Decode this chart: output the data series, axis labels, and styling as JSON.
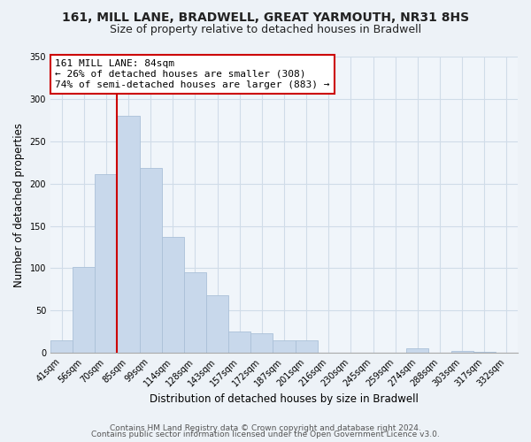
{
  "title1": "161, MILL LANE, BRADWELL, GREAT YARMOUTH, NR31 8HS",
  "title2": "Size of property relative to detached houses in Bradwell",
  "xlabel": "Distribution of detached houses by size in Bradwell",
  "ylabel": "Number of detached properties",
  "categories": [
    "41sqm",
    "56sqm",
    "70sqm",
    "85sqm",
    "99sqm",
    "114sqm",
    "128sqm",
    "143sqm",
    "157sqm",
    "172sqm",
    "187sqm",
    "201sqm",
    "216sqm",
    "230sqm",
    "245sqm",
    "259sqm",
    "274sqm",
    "288sqm",
    "303sqm",
    "317sqm",
    "332sqm"
  ],
  "values": [
    15,
    101,
    211,
    280,
    218,
    137,
    95,
    68,
    25,
    23,
    15,
    15,
    0,
    0,
    0,
    0,
    5,
    0,
    2,
    1,
    0
  ],
  "bar_color": "#c8d8eb",
  "bar_edge_color": "#aac0d8",
  "annotation_box_text": "161 MILL LANE: 84sqm\n← 26% of detached houses are smaller (308)\n74% of semi-detached houses are larger (883) →",
  "annotation_box_facecolor": "white",
  "annotation_box_edgecolor": "#cc0000",
  "vline_color": "#cc0000",
  "vline_x": 3,
  "ylim": [
    0,
    350
  ],
  "yticks": [
    0,
    50,
    100,
    150,
    200,
    250,
    300,
    350
  ],
  "footer1": "Contains HM Land Registry data © Crown copyright and database right 2024.",
  "footer2": "Contains public sector information licensed under the Open Government Licence v3.0.",
  "bg_color": "#edf2f7",
  "plot_bg_color": "#f0f5fa",
  "grid_color": "#d0dce8",
  "title1_fontsize": 10,
  "title2_fontsize": 9,
  "annotation_fontsize": 8,
  "footer_fontsize": 6.5,
  "axis_label_fontsize": 8.5,
  "tick_fontsize": 7
}
